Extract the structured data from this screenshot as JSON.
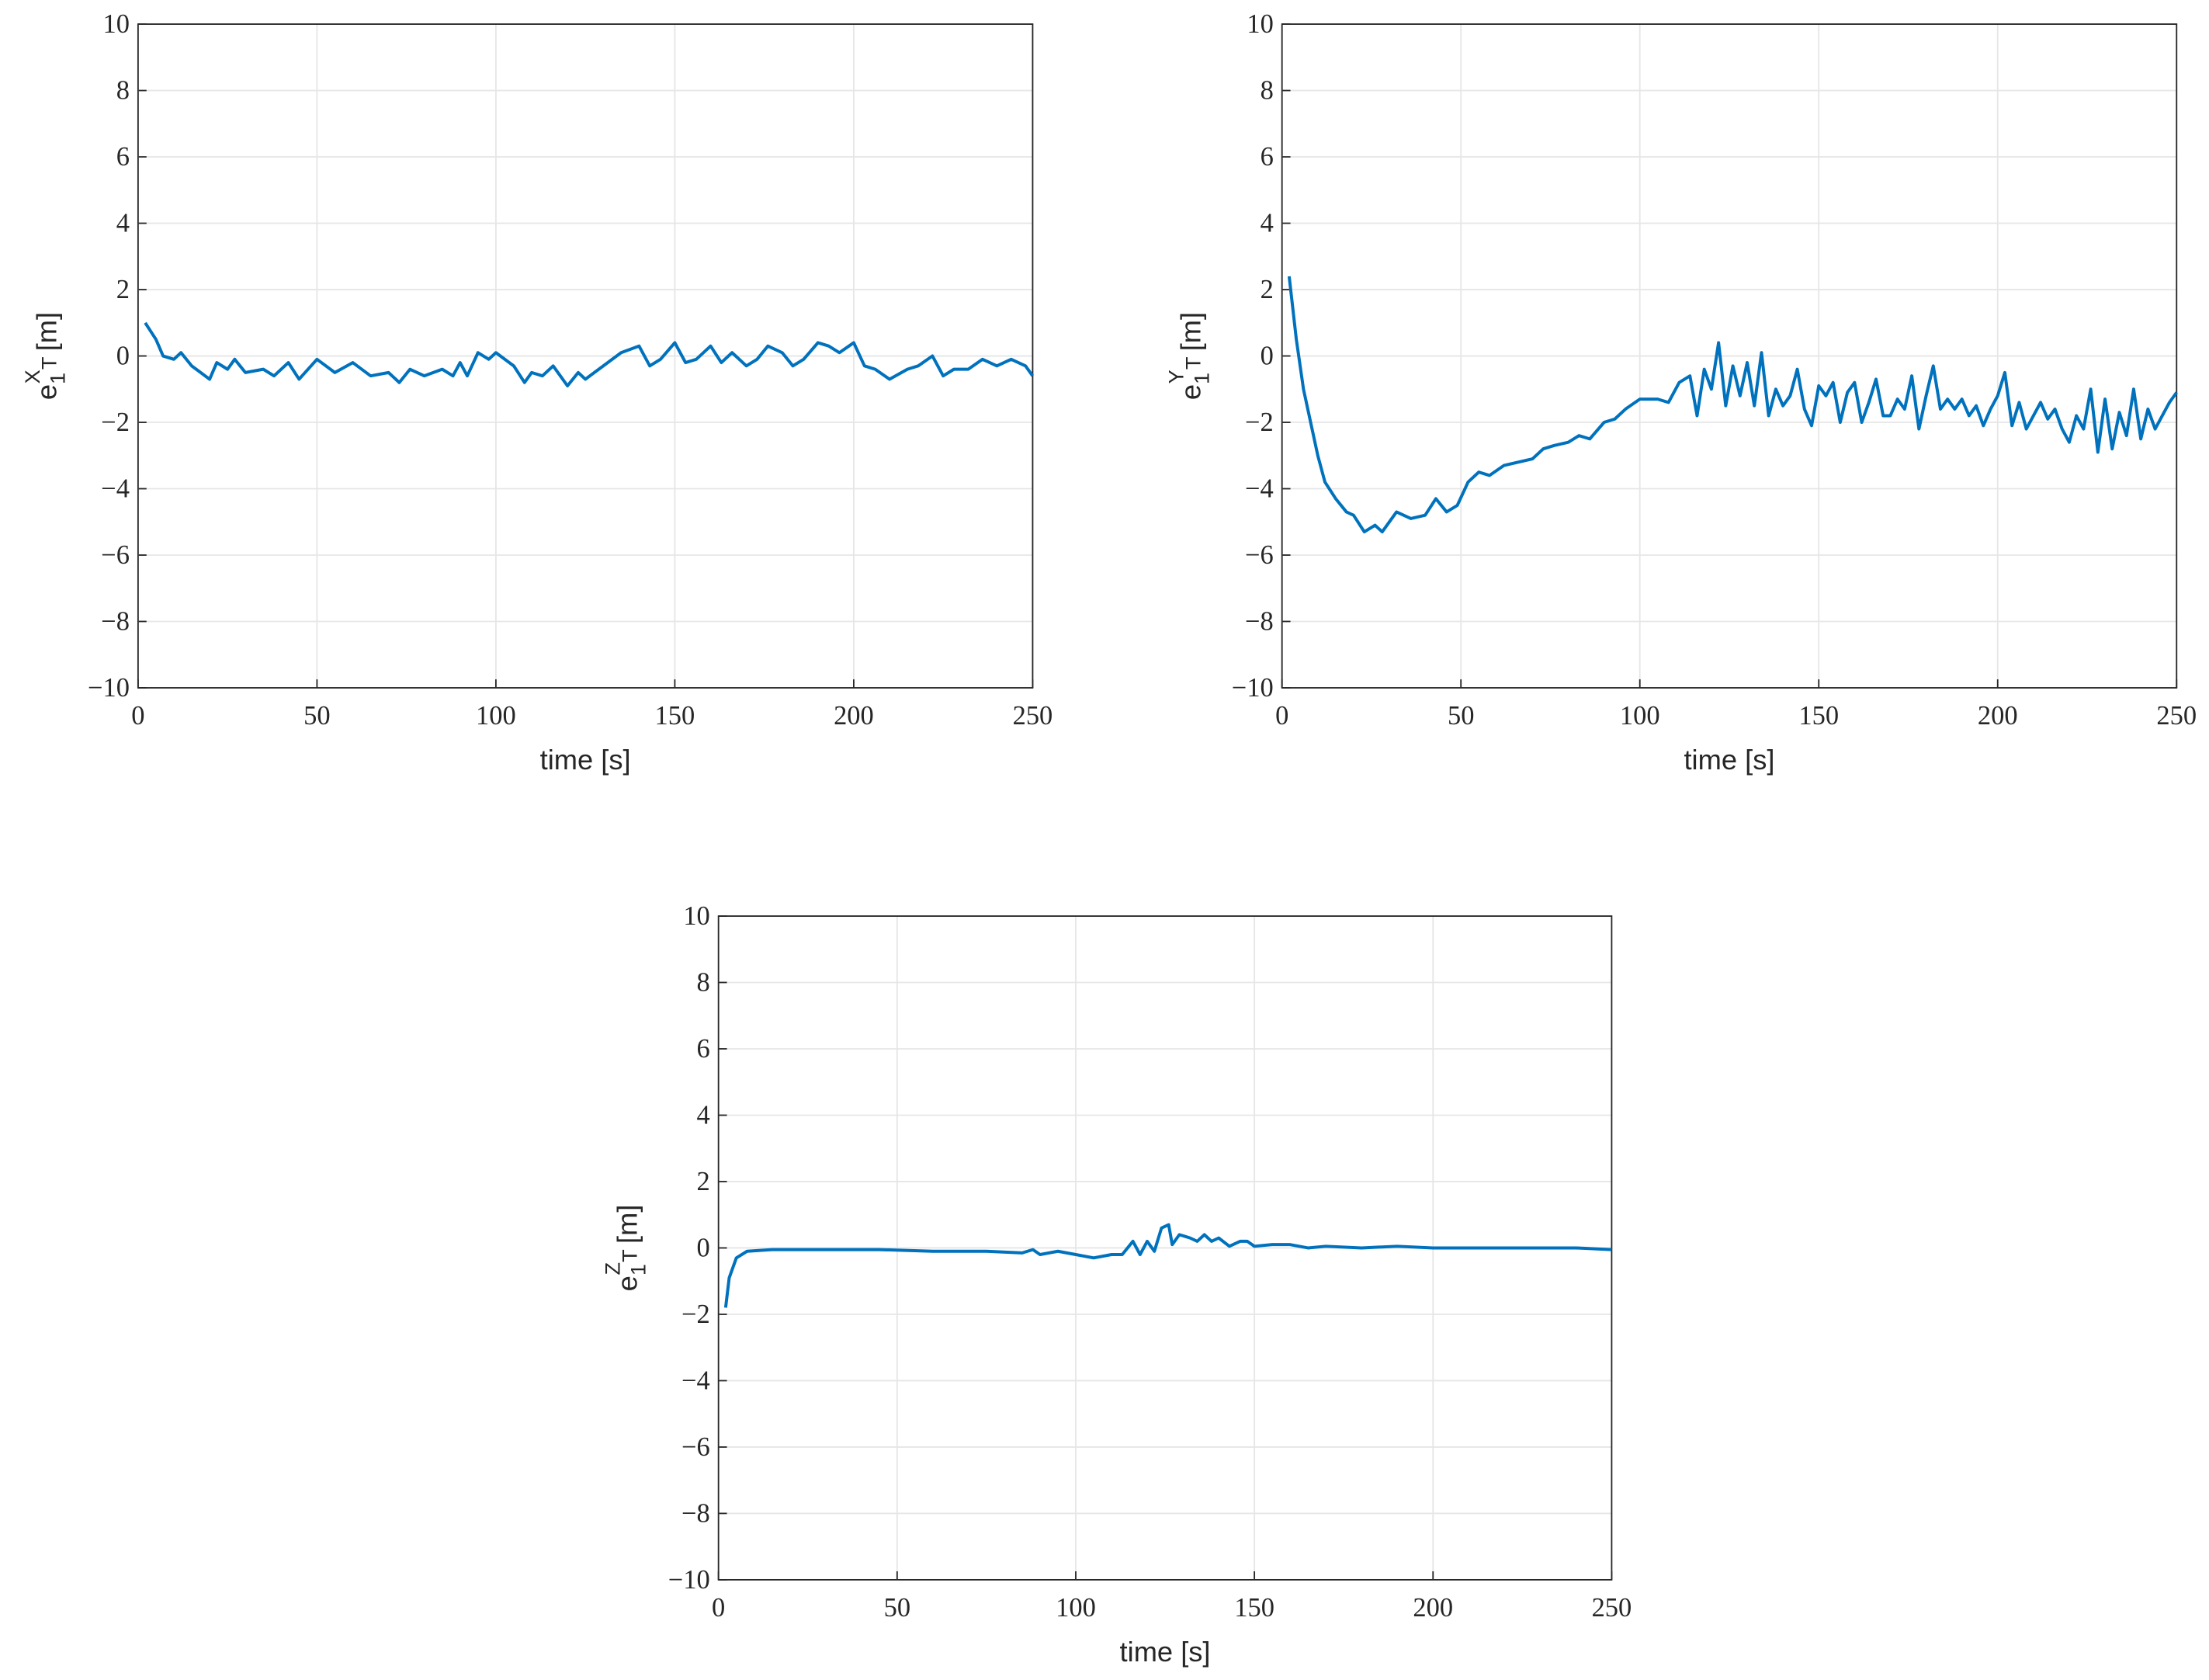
{
  "chart_data": [
    {
      "type": "line",
      "xlabel": "time [s]",
      "ylabel": [
        "e",
        "1",
        "X",
        "T",
        "[m]"
      ],
      "xlim": [
        0,
        250
      ],
      "ylim": [
        -10,
        10
      ],
      "grid": true,
      "xticks": [
        0,
        50,
        100,
        150,
        200,
        250
      ],
      "yticks": [
        {
          "value": -10,
          "label": "−10"
        },
        {
          "value": -8,
          "label": "−8"
        },
        {
          "value": -6,
          "label": "−6"
        },
        {
          "value": -4,
          "label": "−4"
        },
        {
          "value": -2,
          "label": "−2"
        },
        0,
        2,
        4,
        6,
        8,
        10
      ],
      "x": [
        2,
        5,
        7,
        10,
        12,
        15,
        20,
        22,
        25,
        27,
        30,
        35,
        38,
        42,
        45,
        50,
        55,
        60,
        65,
        70,
        73,
        76,
        80,
        85,
        88,
        90,
        92,
        95,
        98,
        100,
        105,
        108,
        110,
        113,
        116,
        120,
        123,
        125,
        130,
        135,
        140,
        143,
        146,
        150,
        153,
        156,
        160,
        163,
        166,
        170,
        173,
        176,
        180,
        183,
        186,
        190,
        193,
        196,
        200,
        203,
        206,
        210,
        215,
        218,
        222,
        225,
        228,
        232,
        236,
        240,
        244,
        248,
        250
      ],
      "series": [
        {
          "color": "#0072bd",
          "values": [
            1.0,
            0.5,
            0,
            -0.1,
            0.1,
            -0.3,
            -0.7,
            -0.2,
            -0.4,
            -0.1,
            -0.5,
            -0.4,
            -0.6,
            -0.2,
            -0.7,
            -0.1,
            -0.5,
            -0.2,
            -0.6,
            -0.5,
            -0.8,
            -0.4,
            -0.6,
            -0.4,
            -0.6,
            -0.2,
            -0.6,
            0.1,
            -0.1,
            0.1,
            -0.3,
            -0.8,
            -0.5,
            -0.6,
            -0.3,
            -0.9,
            -0.5,
            -0.7,
            -0.3,
            0.1,
            0.3,
            -0.3,
            -0.1,
            0.4,
            -0.2,
            -0.1,
            0.3,
            -0.2,
            0.1,
            -0.3,
            -0.1,
            0.3,
            0.1,
            -0.3,
            -0.1,
            0.4,
            0.3,
            0.1,
            0.4,
            -0.3,
            -0.4,
            -0.7,
            -0.4,
            -0.3,
            0,
            -0.6,
            -0.4,
            -0.4,
            -0.1,
            -0.3,
            -0.1,
            -0.3,
            -0.6
          ]
        }
      ]
    },
    {
      "type": "line",
      "xlabel": "time [s]",
      "ylabel": [
        "e",
        "1",
        "Y",
        "T",
        "[m]"
      ],
      "xlim": [
        0,
        250
      ],
      "ylim": [
        -10,
        10
      ],
      "grid": true,
      "xticks": [
        0,
        50,
        100,
        150,
        200,
        250
      ],
      "yticks": [
        {
          "value": -10,
          "label": "−10"
        },
        {
          "value": -8,
          "label": "−8"
        },
        {
          "value": -6,
          "label": "−6"
        },
        {
          "value": -4,
          "label": "−4"
        },
        {
          "value": -2,
          "label": "−2"
        },
        0,
        2,
        4,
        6,
        8,
        10
      ],
      "x": [
        2,
        4,
        6,
        8,
        10,
        12,
        15,
        18,
        20,
        23,
        26,
        28,
        32,
        36,
        40,
        43,
        46,
        49,
        52,
        55,
        58,
        62,
        66,
        70,
        73,
        76,
        80,
        83,
        86,
        90,
        93,
        96,
        100,
        105,
        108,
        111,
        114,
        116,
        118,
        120,
        122,
        124,
        126,
        128,
        130,
        132,
        134,
        136,
        138,
        140,
        142,
        144,
        146,
        148,
        150,
        152,
        154,
        156,
        158,
        160,
        162,
        164,
        166,
        168,
        170,
        172,
        174,
        176,
        178,
        180,
        182,
        184,
        186,
        188,
        190,
        192,
        194,
        196,
        198,
        200,
        202,
        204,
        206,
        208,
        210,
        212,
        214,
        216,
        218,
        220,
        222,
        224,
        226,
        228,
        230,
        232,
        234,
        236,
        238,
        240,
        242,
        244,
        246,
        248,
        250
      ],
      "series": [
        {
          "color": "#0072bd",
          "values": [
            2.4,
            0.5,
            -1,
            -2,
            -3,
            -3.8,
            -4.3,
            -4.7,
            -4.8,
            -5.3,
            -5.1,
            -5.3,
            -4.7,
            -4.9,
            -4.8,
            -4.3,
            -4.7,
            -4.5,
            -3.8,
            -3.5,
            -3.6,
            -3.3,
            -3.2,
            -3.1,
            -2.8,
            -2.7,
            -2.6,
            -2.4,
            -2.5,
            -2.0,
            -1.9,
            -1.6,
            -1.3,
            -1.3,
            -1.4,
            -0.8,
            -0.6,
            -1.8,
            -0.4,
            -1.0,
            0.4,
            -1.5,
            -0.3,
            -1.2,
            -0.2,
            -1.5,
            0.1,
            -1.8,
            -1.0,
            -1.5,
            -1.2,
            -0.4,
            -1.6,
            -2.1,
            -0.9,
            -1.2,
            -0.8,
            -2.0,
            -1.1,
            -0.8,
            -2.0,
            -1.4,
            -0.7,
            -1.8,
            -1.8,
            -1.3,
            -1.6,
            -0.6,
            -2.2,
            -1.2,
            -0.3,
            -1.6,
            -1.3,
            -1.6,
            -1.3,
            -1.8,
            -1.5,
            -2.1,
            -1.6,
            -1.2,
            -0.5,
            -2.1,
            -1.4,
            -2.2,
            -1.8,
            -1.4,
            -1.9,
            -1.6,
            -2.2,
            -2.6,
            -1.8,
            -2.2,
            -1.0,
            -2.9,
            -1.3,
            -2.8,
            -1.7,
            -2.4,
            -1.0,
            -2.5,
            -1.6,
            -2.2,
            -1.8,
            -1.4,
            -1.1
          ]
        }
      ]
    },
    {
      "type": "line",
      "xlabel": "time [s]",
      "ylabel": [
        "e",
        "1",
        "Z",
        "T",
        "[m]"
      ],
      "xlim": [
        0,
        250
      ],
      "ylim": [
        -10,
        10
      ],
      "grid": true,
      "xticks": [
        0,
        50,
        100,
        150,
        200,
        250
      ],
      "yticks": [
        {
          "value": -10,
          "label": "−10"
        },
        {
          "value": -8,
          "label": "−8"
        },
        {
          "value": -6,
          "label": "−6"
        },
        {
          "value": -4,
          "label": "−4"
        },
        {
          "value": -2,
          "label": "−2"
        },
        0,
        2,
        4,
        6,
        8,
        10
      ],
      "x": [
        2,
        3,
        5,
        8,
        15,
        30,
        45,
        60,
        75,
        85,
        88,
        90,
        95,
        100,
        105,
        110,
        113,
        116,
        118,
        120,
        122,
        124,
        126,
        127,
        129,
        132,
        134,
        136,
        138,
        140,
        143,
        146,
        148,
        150,
        155,
        160,
        165,
        170,
        180,
        190,
        200,
        210,
        220,
        230,
        240,
        250
      ],
      "series": [
        {
          "color": "#0072bd",
          "values": [
            -1.8,
            -0.9,
            -0.3,
            -0.1,
            -0.05,
            -0.05,
            -0.05,
            -0.1,
            -0.1,
            -0.15,
            -0.05,
            -0.2,
            -0.1,
            -0.2,
            -0.3,
            -0.2,
            -0.2,
            0.2,
            -0.2,
            0.2,
            -0.1,
            0.6,
            0.7,
            0.1,
            0.4,
            0.3,
            0.2,
            0.4,
            0.2,
            0.3,
            0.05,
            0.2,
            0.2,
            0.05,
            0.1,
            0.1,
            0,
            0.05,
            0,
            0.05,
            0,
            0,
            0,
            0,
            0,
            -0.05
          ]
        }
      ]
    }
  ]
}
